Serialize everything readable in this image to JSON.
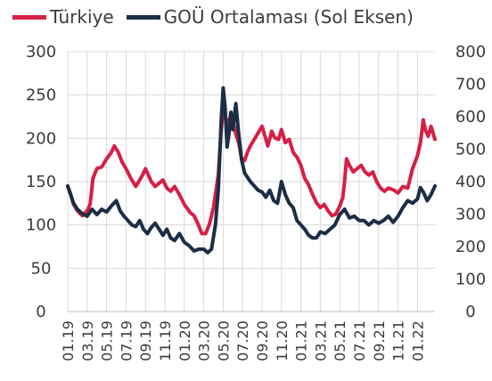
{
  "colors": {
    "turkiye": "#d61f45",
    "eme": "#1b2e45",
    "grid": "#d9d9d9",
    "text": "#3b3b3b"
  },
  "chart_data": {
    "type": "line",
    "title": "",
    "legend": {
      "placement": "top-left",
      "items": [
        "Türkiye",
        "GOÜ Ortalaması (Sol Eksen)"
      ]
    },
    "left_axis": {
      "range": [
        0,
        300
      ],
      "ticks": [
        "300",
        "250",
        "200",
        "150",
        "100",
        "50",
        "0"
      ]
    },
    "right_axis": {
      "range": [
        0,
        800
      ],
      "ticks": [
        "800",
        "700",
        "600",
        "500",
        "400",
        "300",
        "200",
        "100",
        "0"
      ]
    },
    "x_range": [
      0,
      37.8
    ],
    "x_tick_labels": [
      "01.19",
      "03.19",
      "05.19",
      "07.19",
      "09.19",
      "11.19",
      "01.20",
      "03.20",
      "05.20",
      "07.20",
      "09.20",
      "11.20",
      "01.21",
      "03.21",
      "05.21",
      "07.21",
      "09.21",
      "11.21",
      "01.22"
    ],
    "grid": true,
    "series": [
      {
        "name": "Türkiye",
        "axis": "right",
        "color_key": "turkiye",
        "points": [
          [
            0,
            385
          ],
          [
            0.3,
            360
          ],
          [
            0.6,
            330
          ],
          [
            1,
            310
          ],
          [
            1.5,
            295
          ],
          [
            2,
            310
          ],
          [
            2.3,
            330
          ],
          [
            2.6,
            410
          ],
          [
            3,
            440
          ],
          [
            3.5,
            445
          ],
          [
            4,
            470
          ],
          [
            4.5,
            490
          ],
          [
            4.8,
            510
          ],
          [
            5.2,
            490
          ],
          [
            5.6,
            460
          ],
          [
            6,
            440
          ],
          [
            6.5,
            410
          ],
          [
            7,
            385
          ],
          [
            7.3,
            400
          ],
          [
            7.7,
            420
          ],
          [
            8,
            440
          ],
          [
            8.3,
            420
          ],
          [
            8.6,
            400
          ],
          [
            9,
            385
          ],
          [
            9.4,
            395
          ],
          [
            9.8,
            405
          ],
          [
            10.2,
            380
          ],
          [
            10.6,
            370
          ],
          [
            11,
            385
          ],
          [
            11.5,
            360
          ],
          [
            12,
            330
          ],
          [
            12.6,
            305
          ],
          [
            13,
            295
          ],
          [
            13.4,
            270
          ],
          [
            13.8,
            240
          ],
          [
            14.2,
            240
          ],
          [
            14.6,
            270
          ],
          [
            15,
            320
          ],
          [
            15.5,
            420
          ],
          [
            15.8,
            560
          ],
          [
            16,
            620
          ],
          [
            16.2,
            600
          ],
          [
            16.5,
            570
          ],
          [
            16.8,
            610
          ],
          [
            17,
            590
          ],
          [
            17.3,
            545
          ],
          [
            17.6,
            520
          ],
          [
            17.9,
            470
          ],
          [
            18.2,
            465
          ],
          [
            18.5,
            490
          ],
          [
            18.8,
            510
          ],
          [
            19.2,
            530
          ],
          [
            19.6,
            550
          ],
          [
            20,
            570
          ],
          [
            20.3,
            540
          ],
          [
            20.6,
            510
          ],
          [
            21,
            555
          ],
          [
            21.3,
            535
          ],
          [
            21.7,
            530
          ],
          [
            22,
            560
          ],
          [
            22.4,
            520
          ],
          [
            22.8,
            530
          ],
          [
            23.2,
            490
          ],
          [
            23.6,
            475
          ],
          [
            24,
            450
          ],
          [
            24.4,
            410
          ],
          [
            24.8,
            390
          ],
          [
            25.2,
            360
          ],
          [
            25.6,
            335
          ],
          [
            26,
            320
          ],
          [
            26.4,
            330
          ],
          [
            26.8,
            310
          ],
          [
            27.2,
            295
          ],
          [
            27.6,
            300
          ],
          [
            28,
            325
          ],
          [
            28.3,
            350
          ],
          [
            28.5,
            400
          ],
          [
            28.7,
            470
          ],
          [
            29,
            450
          ],
          [
            29.4,
            430
          ],
          [
            29.8,
            440
          ],
          [
            30.2,
            450
          ],
          [
            30.6,
            430
          ],
          [
            31,
            420
          ],
          [
            31.4,
            430
          ],
          [
            31.8,
            400
          ],
          [
            32.2,
            380
          ],
          [
            32.6,
            370
          ],
          [
            33,
            380
          ],
          [
            33.5,
            375
          ],
          [
            34,
            365
          ],
          [
            34.5,
            385
          ],
          [
            35,
            380
          ],
          [
            35.5,
            440
          ],
          [
            36,
            480
          ],
          [
            36.3,
            520
          ],
          [
            36.6,
            590
          ],
          [
            36.8,
            560
          ],
          [
            37.1,
            540
          ],
          [
            37.4,
            570
          ],
          [
            37.8,
            530
          ]
        ]
      },
      {
        "name": "GOÜ Ortalaması (Sol Eksen)",
        "axis": "left",
        "color_key": "eme",
        "points": [
          [
            0,
            145
          ],
          [
            0.3,
            135
          ],
          [
            0.6,
            125
          ],
          [
            1,
            118
          ],
          [
            1.5,
            113
          ],
          [
            2,
            110
          ],
          [
            2.5,
            118
          ],
          [
            3,
            112
          ],
          [
            3.5,
            118
          ],
          [
            4,
            115
          ],
          [
            4.5,
            122
          ],
          [
            5,
            128
          ],
          [
            5.4,
            116
          ],
          [
            5.8,
            110
          ],
          [
            6.2,
            105
          ],
          [
            6.6,
            100
          ],
          [
            7,
            98
          ],
          [
            7.4,
            105
          ],
          [
            7.8,
            95
          ],
          [
            8.2,
            90
          ],
          [
            8.6,
            97
          ],
          [
            9,
            102
          ],
          [
            9.4,
            95
          ],
          [
            9.8,
            88
          ],
          [
            10.2,
            95
          ],
          [
            10.6,
            85
          ],
          [
            11,
            82
          ],
          [
            11.5,
            90
          ],
          [
            12,
            80
          ],
          [
            12.5,
            76
          ],
          [
            13,
            70
          ],
          [
            13.5,
            72
          ],
          [
            14,
            72
          ],
          [
            14.4,
            68
          ],
          [
            14.8,
            72
          ],
          [
            15.2,
            100
          ],
          [
            15.5,
            140
          ],
          [
            15.8,
            220
          ],
          [
            16,
            258
          ],
          [
            16.2,
            235
          ],
          [
            16.4,
            190
          ],
          [
            16.6,
            205
          ],
          [
            16.8,
            230
          ],
          [
            17,
            210
          ],
          [
            17.3,
            240
          ],
          [
            17.6,
            205
          ],
          [
            17.9,
            175
          ],
          [
            18.2,
            160
          ],
          [
            18.5,
            155
          ],
          [
            18.8,
            150
          ],
          [
            19.2,
            145
          ],
          [
            19.6,
            140
          ],
          [
            20,
            138
          ],
          [
            20.4,
            132
          ],
          [
            20.8,
            140
          ],
          [
            21.2,
            128
          ],
          [
            21.6,
            125
          ],
          [
            22,
            150
          ],
          [
            22.4,
            135
          ],
          [
            22.8,
            125
          ],
          [
            23.2,
            120
          ],
          [
            23.6,
            105
          ],
          [
            24,
            100
          ],
          [
            24.4,
            95
          ],
          [
            24.8,
            88
          ],
          [
            25.2,
            85
          ],
          [
            25.6,
            85
          ],
          [
            26,
            92
          ],
          [
            26.5,
            90
          ],
          [
            27,
            95
          ],
          [
            27.5,
            100
          ],
          [
            28,
            112
          ],
          [
            28.5,
            118
          ],
          [
            29,
            108
          ],
          [
            29.5,
            110
          ],
          [
            30,
            105
          ],
          [
            30.5,
            105
          ],
          [
            31,
            100
          ],
          [
            31.5,
            105
          ],
          [
            32,
            102
          ],
          [
            32.5,
            105
          ],
          [
            33,
            110
          ],
          [
            33.5,
            103
          ],
          [
            34,
            110
          ],
          [
            34.5,
            120
          ],
          [
            35,
            128
          ],
          [
            35.5,
            125
          ],
          [
            36,
            130
          ],
          [
            36.3,
            143
          ],
          [
            36.6,
            138
          ],
          [
            37,
            128
          ],
          [
            37.4,
            135
          ],
          [
            37.8,
            145
          ]
        ]
      }
    ]
  }
}
